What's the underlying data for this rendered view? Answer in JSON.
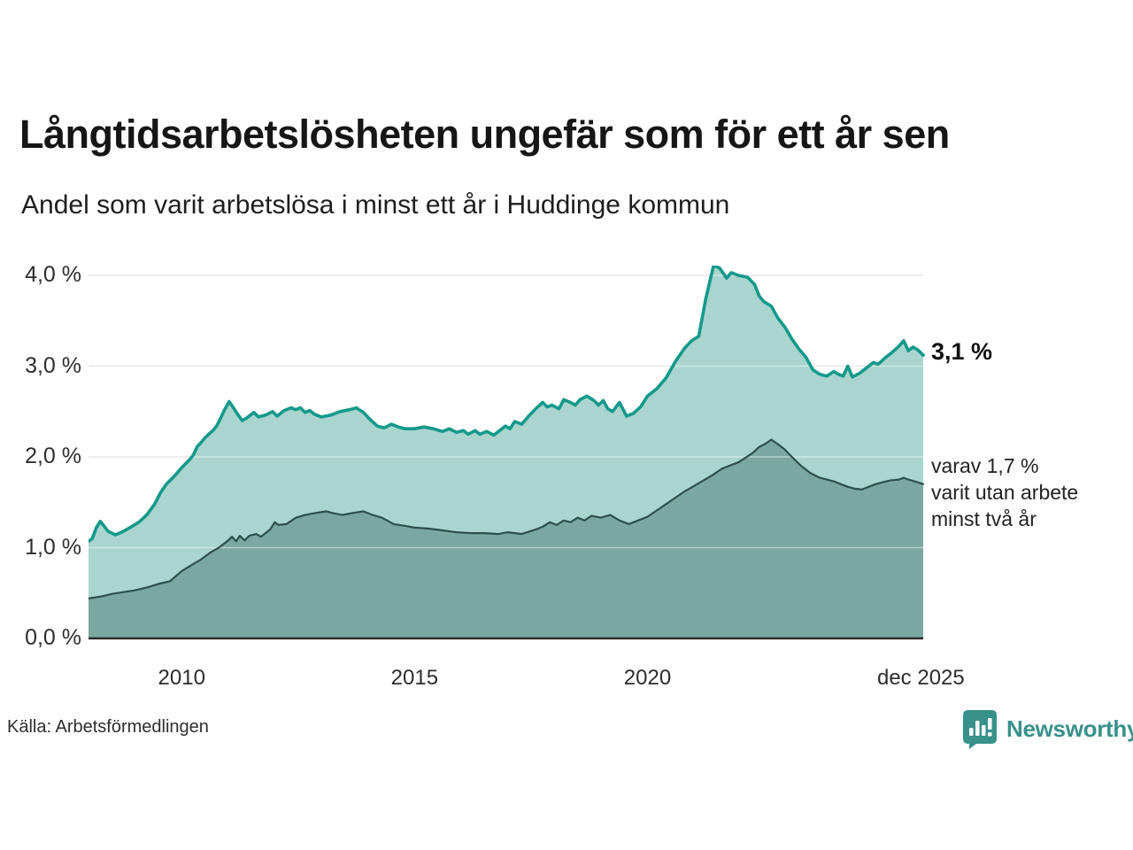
{
  "header": {
    "title": "Långtidsarbetslösheten ungefär som för ett år sen",
    "subtitle": "Andel som varit arbetslösa i minst ett år i Huddinge kommun"
  },
  "chart_data": {
    "type": "area",
    "title": "Långtidsarbetslösheten ungefär som för ett år sen",
    "subtitle": "Andel som varit arbetslösa i minst ett år i Huddinge kommun",
    "unit": "%",
    "x_range": [
      2008.0,
      2025.92
    ],
    "y_range": [
      0.0,
      4.3
    ],
    "grid": true,
    "colors": {
      "line_1yr": "#14998a",
      "fill_1yr": "#a9d5ce",
      "line_2yr": "#2e4f4b",
      "fill_2yr": "#7aa8a1",
      "gridline": "#d9d9d9",
      "baseline": "#2b2b2b"
    },
    "y_ticks": [
      {
        "label": "4,0 %",
        "value": 4.0
      },
      {
        "label": "3,0 %",
        "value": 3.0
      },
      {
        "label": "2,0 %",
        "value": 2.0
      },
      {
        "label": "1,0 %",
        "value": 1.0
      },
      {
        "label": "0,0 %",
        "value": 0.0
      }
    ],
    "x_ticks": [
      {
        "label": "2010",
        "year": 2010.0
      },
      {
        "label": "2015",
        "year": 2015.0
      },
      {
        "label": "2020",
        "year": 2020.0
      },
      {
        "label": "dec 2025",
        "year": 2025.87
      }
    ],
    "series": [
      {
        "name": "Arbetslösa minst ett år",
        "end_value": 3.1,
        "points": [
          [
            2008.0,
            1.07
          ],
          [
            2008.08,
            1.1
          ],
          [
            2008.17,
            1.22
          ],
          [
            2008.25,
            1.29
          ],
          [
            2008.33,
            1.24
          ],
          [
            2008.42,
            1.18
          ],
          [
            2008.58,
            1.14
          ],
          [
            2008.75,
            1.18
          ],
          [
            2008.92,
            1.23
          ],
          [
            2009.08,
            1.28
          ],
          [
            2009.25,
            1.36
          ],
          [
            2009.42,
            1.48
          ],
          [
            2009.54,
            1.6
          ],
          [
            2009.67,
            1.7
          ],
          [
            2009.83,
            1.78
          ],
          [
            2010.0,
            1.88
          ],
          [
            2010.17,
            1.97
          ],
          [
            2010.25,
            2.02
          ],
          [
            2010.33,
            2.11
          ],
          [
            2010.42,
            2.16
          ],
          [
            2010.5,
            2.21
          ],
          [
            2010.58,
            2.25
          ],
          [
            2010.67,
            2.29
          ],
          [
            2010.75,
            2.34
          ],
          [
            2010.83,
            2.42
          ],
          [
            2010.92,
            2.52
          ],
          [
            2011.02,
            2.61
          ],
          [
            2011.1,
            2.55
          ],
          [
            2011.2,
            2.47
          ],
          [
            2011.3,
            2.4
          ],
          [
            2011.4,
            2.43
          ],
          [
            2011.55,
            2.49
          ],
          [
            2011.65,
            2.44
          ],
          [
            2011.8,
            2.46
          ],
          [
            2011.95,
            2.5
          ],
          [
            2012.05,
            2.45
          ],
          [
            2012.2,
            2.51
          ],
          [
            2012.35,
            2.54
          ],
          [
            2012.45,
            2.52
          ],
          [
            2012.55,
            2.54
          ],
          [
            2012.65,
            2.49
          ],
          [
            2012.75,
            2.51
          ],
          [
            2012.85,
            2.47
          ],
          [
            2013.0,
            2.44
          ],
          [
            2013.2,
            2.46
          ],
          [
            2013.4,
            2.5
          ],
          [
            2013.6,
            2.52
          ],
          [
            2013.75,
            2.54
          ],
          [
            2013.9,
            2.49
          ],
          [
            2014.05,
            2.41
          ],
          [
            2014.2,
            2.34
          ],
          [
            2014.35,
            2.32
          ],
          [
            2014.5,
            2.36
          ],
          [
            2014.65,
            2.33
          ],
          [
            2014.8,
            2.31
          ],
          [
            2015.0,
            2.31
          ],
          [
            2015.2,
            2.33
          ],
          [
            2015.4,
            2.31
          ],
          [
            2015.6,
            2.28
          ],
          [
            2015.75,
            2.31
          ],
          [
            2015.9,
            2.27
          ],
          [
            2016.05,
            2.29
          ],
          [
            2016.15,
            2.25
          ],
          [
            2016.3,
            2.29
          ],
          [
            2016.4,
            2.25
          ],
          [
            2016.55,
            2.28
          ],
          [
            2016.7,
            2.24
          ],
          [
            2016.85,
            2.3
          ],
          [
            2016.95,
            2.34
          ],
          [
            2017.05,
            2.31
          ],
          [
            2017.15,
            2.39
          ],
          [
            2017.3,
            2.36
          ],
          [
            2017.45,
            2.45
          ],
          [
            2017.6,
            2.53
          ],
          [
            2017.75,
            2.6
          ],
          [
            2017.85,
            2.55
          ],
          [
            2017.95,
            2.57
          ],
          [
            2018.1,
            2.53
          ],
          [
            2018.2,
            2.63
          ],
          [
            2018.35,
            2.6
          ],
          [
            2018.45,
            2.57
          ],
          [
            2018.55,
            2.63
          ],
          [
            2018.7,
            2.67
          ],
          [
            2018.85,
            2.62
          ],
          [
            2018.95,
            2.57
          ],
          [
            2019.05,
            2.62
          ],
          [
            2019.15,
            2.53
          ],
          [
            2019.25,
            2.5
          ],
          [
            2019.4,
            2.6
          ],
          [
            2019.55,
            2.45
          ],
          [
            2019.7,
            2.48
          ],
          [
            2019.85,
            2.55
          ],
          [
            2020.0,
            2.67
          ],
          [
            2020.2,
            2.75
          ],
          [
            2020.4,
            2.87
          ],
          [
            2020.6,
            3.05
          ],
          [
            2020.8,
            3.2
          ],
          [
            2020.95,
            3.28
          ],
          [
            2021.1,
            3.33
          ],
          [
            2021.25,
            3.74
          ],
          [
            2021.42,
            4.11
          ],
          [
            2021.55,
            4.08
          ],
          [
            2021.7,
            3.97
          ],
          [
            2021.8,
            4.03
          ],
          [
            2021.95,
            4.0
          ],
          [
            2022.15,
            3.98
          ],
          [
            2022.3,
            3.9
          ],
          [
            2022.4,
            3.77
          ],
          [
            2022.5,
            3.71
          ],
          [
            2022.66,
            3.66
          ],
          [
            2022.8,
            3.53
          ],
          [
            2022.95,
            3.43
          ],
          [
            2023.1,
            3.3
          ],
          [
            2023.25,
            3.19
          ],
          [
            2023.4,
            3.1
          ],
          [
            2023.55,
            2.96
          ],
          [
            2023.7,
            2.91
          ],
          [
            2023.85,
            2.89
          ],
          [
            2024.0,
            2.94
          ],
          [
            2024.1,
            2.91
          ],
          [
            2024.2,
            2.89
          ],
          [
            2024.3,
            3.0
          ],
          [
            2024.4,
            2.88
          ],
          [
            2024.55,
            2.92
          ],
          [
            2024.7,
            2.98
          ],
          [
            2024.85,
            3.04
          ],
          [
            2024.95,
            3.02
          ],
          [
            2025.1,
            3.09
          ],
          [
            2025.25,
            3.15
          ],
          [
            2025.4,
            3.22
          ],
          [
            2025.5,
            3.28
          ],
          [
            2025.6,
            3.17
          ],
          [
            2025.7,
            3.21
          ],
          [
            2025.8,
            3.18
          ],
          [
            2025.92,
            3.12
          ]
        ]
      },
      {
        "name": "varav varit utan arbete minst två år",
        "end_value": 1.7,
        "points": [
          [
            2008.0,
            0.44
          ],
          [
            2008.25,
            0.46
          ],
          [
            2008.5,
            0.49
          ],
          [
            2008.75,
            0.51
          ],
          [
            2009.0,
            0.53
          ],
          [
            2009.25,
            0.56
          ],
          [
            2009.5,
            0.6
          ],
          [
            2009.75,
            0.63
          ],
          [
            2010.0,
            0.74
          ],
          [
            2010.25,
            0.82
          ],
          [
            2010.42,
            0.87
          ],
          [
            2010.6,
            0.94
          ],
          [
            2010.8,
            1.0
          ],
          [
            2011.0,
            1.08
          ],
          [
            2011.08,
            1.12
          ],
          [
            2011.17,
            1.07
          ],
          [
            2011.25,
            1.13
          ],
          [
            2011.35,
            1.08
          ],
          [
            2011.45,
            1.13
          ],
          [
            2011.6,
            1.15
          ],
          [
            2011.7,
            1.12
          ],
          [
            2011.9,
            1.2
          ],
          [
            2012.0,
            1.28
          ],
          [
            2012.08,
            1.25
          ],
          [
            2012.25,
            1.26
          ],
          [
            2012.45,
            1.33
          ],
          [
            2012.65,
            1.36
          ],
          [
            2012.85,
            1.38
          ],
          [
            2013.1,
            1.4
          ],
          [
            2013.25,
            1.38
          ],
          [
            2013.45,
            1.36
          ],
          [
            2013.65,
            1.38
          ],
          [
            2013.9,
            1.4
          ],
          [
            2014.1,
            1.36
          ],
          [
            2014.3,
            1.33
          ],
          [
            2014.55,
            1.26
          ],
          [
            2014.8,
            1.24
          ],
          [
            2015.0,
            1.22
          ],
          [
            2015.3,
            1.21
          ],
          [
            2015.6,
            1.19
          ],
          [
            2015.9,
            1.17
          ],
          [
            2016.2,
            1.16
          ],
          [
            2016.5,
            1.16
          ],
          [
            2016.8,
            1.15
          ],
          [
            2017.0,
            1.17
          ],
          [
            2017.3,
            1.15
          ],
          [
            2017.6,
            1.2
          ],
          [
            2017.75,
            1.23
          ],
          [
            2017.9,
            1.28
          ],
          [
            2018.05,
            1.25
          ],
          [
            2018.2,
            1.3
          ],
          [
            2018.35,
            1.28
          ],
          [
            2018.5,
            1.33
          ],
          [
            2018.65,
            1.3
          ],
          [
            2018.8,
            1.35
          ],
          [
            2019.0,
            1.33
          ],
          [
            2019.2,
            1.36
          ],
          [
            2019.4,
            1.3
          ],
          [
            2019.6,
            1.26
          ],
          [
            2019.8,
            1.3
          ],
          [
            2020.0,
            1.34
          ],
          [
            2020.2,
            1.41
          ],
          [
            2020.4,
            1.48
          ],
          [
            2020.6,
            1.55
          ],
          [
            2020.8,
            1.62
          ],
          [
            2021.0,
            1.68
          ],
          [
            2021.2,
            1.74
          ],
          [
            2021.4,
            1.8
          ],
          [
            2021.6,
            1.87
          ],
          [
            2021.8,
            1.91
          ],
          [
            2021.95,
            1.94
          ],
          [
            2022.1,
            1.99
          ],
          [
            2022.25,
            2.04
          ],
          [
            2022.4,
            2.11
          ],
          [
            2022.55,
            2.15
          ],
          [
            2022.66,
            2.19
          ],
          [
            2022.8,
            2.14
          ],
          [
            2022.95,
            2.08
          ],
          [
            2023.1,
            2.0
          ],
          [
            2023.3,
            1.9
          ],
          [
            2023.5,
            1.82
          ],
          [
            2023.7,
            1.77
          ],
          [
            2023.85,
            1.75
          ],
          [
            2024.0,
            1.73
          ],
          [
            2024.15,
            1.7
          ],
          [
            2024.3,
            1.67
          ],
          [
            2024.45,
            1.65
          ],
          [
            2024.6,
            1.64
          ],
          [
            2024.75,
            1.67
          ],
          [
            2024.9,
            1.7
          ],
          [
            2025.05,
            1.72
          ],
          [
            2025.2,
            1.74
          ],
          [
            2025.4,
            1.75
          ],
          [
            2025.5,
            1.77
          ],
          [
            2025.6,
            1.75
          ],
          [
            2025.8,
            1.72
          ],
          [
            2025.92,
            1.7
          ]
        ]
      }
    ],
    "annotations": {
      "end_value_label": "3,1 %",
      "sub_label_lines": [
        "varav 1,7 %",
        "varit utan arbete",
        "minst två år"
      ]
    },
    "legend_position": "right-annotations"
  },
  "footer": {
    "source": "Källa: Arbetsförmedlingen",
    "brand": "Newsworthy"
  }
}
